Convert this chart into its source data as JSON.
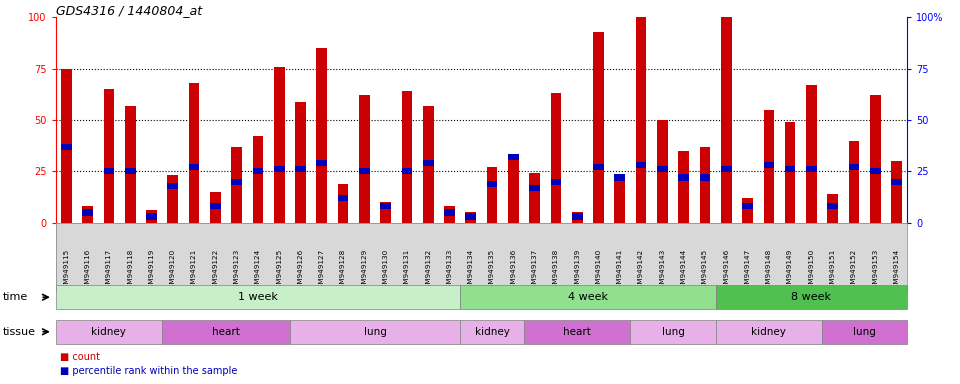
{
  "title": "GDS4316 / 1440804_at",
  "samples": [
    "GSM949115",
    "GSM949116",
    "GSM949117",
    "GSM949118",
    "GSM949119",
    "GSM949120",
    "GSM949121",
    "GSM949122",
    "GSM949123",
    "GSM949124",
    "GSM949125",
    "GSM949126",
    "GSM949127",
    "GSM949128",
    "GSM949129",
    "GSM949130",
    "GSM949131",
    "GSM949132",
    "GSM949133",
    "GSM949134",
    "GSM949135",
    "GSM949136",
    "GSM949137",
    "GSM949138",
    "GSM949139",
    "GSM949140",
    "GSM949141",
    "GSM949142",
    "GSM949143",
    "GSM949144",
    "GSM949145",
    "GSM949146",
    "GSM949147",
    "GSM949148",
    "GSM949149",
    "GSM949150",
    "GSM949151",
    "GSM949152",
    "GSM949153",
    "GSM949154"
  ],
  "count_values": [
    75,
    8,
    65,
    57,
    6,
    23,
    68,
    15,
    37,
    42,
    76,
    59,
    85,
    19,
    62,
    10,
    64,
    57,
    8,
    5,
    27,
    32,
    24,
    63,
    5,
    93,
    22,
    102,
    50,
    35,
    37,
    103,
    12,
    55,
    49,
    67,
    14,
    40,
    62,
    30
  ],
  "percentile_values": [
    37,
    5,
    25,
    25,
    3,
    18,
    27,
    8,
    20,
    25,
    26,
    26,
    29,
    12,
    25,
    8,
    25,
    29,
    5,
    3,
    19,
    32,
    17,
    20,
    3,
    27,
    22,
    28,
    26,
    22,
    22,
    26,
    8,
    28,
    26,
    26,
    8,
    27,
    25,
    20
  ],
  "time_groups": [
    {
      "label": "1 week",
      "start": 0,
      "end": 19,
      "color": "#c8f0c8"
    },
    {
      "label": "4 week",
      "start": 19,
      "end": 31,
      "color": "#90e090"
    },
    {
      "label": "8 week",
      "start": 31,
      "end": 40,
      "color": "#50c050"
    }
  ],
  "tissue_groups": [
    {
      "label": "kidney",
      "start": 0,
      "end": 5,
      "color": "#e8b0e8"
    },
    {
      "label": "heart",
      "start": 5,
      "end": 11,
      "color": "#d070d0"
    },
    {
      "label": "lung",
      "start": 11,
      "end": 19,
      "color": "#e8b0e8"
    },
    {
      "label": "kidney",
      "start": 19,
      "end": 22,
      "color": "#e8b0e8"
    },
    {
      "label": "heart",
      "start": 22,
      "end": 27,
      "color": "#d070d0"
    },
    {
      "label": "lung",
      "start": 27,
      "end": 31,
      "color": "#e8b0e8"
    },
    {
      "label": "kidney",
      "start": 31,
      "end": 36,
      "color": "#e8b0e8"
    },
    {
      "label": "lung",
      "start": 36,
      "end": 40,
      "color": "#d070d0"
    }
  ],
  "bar_color_red": "#cc0000",
  "bar_color_blue": "#0000bb",
  "background_color": "#ffffff",
  "tick_bg": "#d8d8d8"
}
